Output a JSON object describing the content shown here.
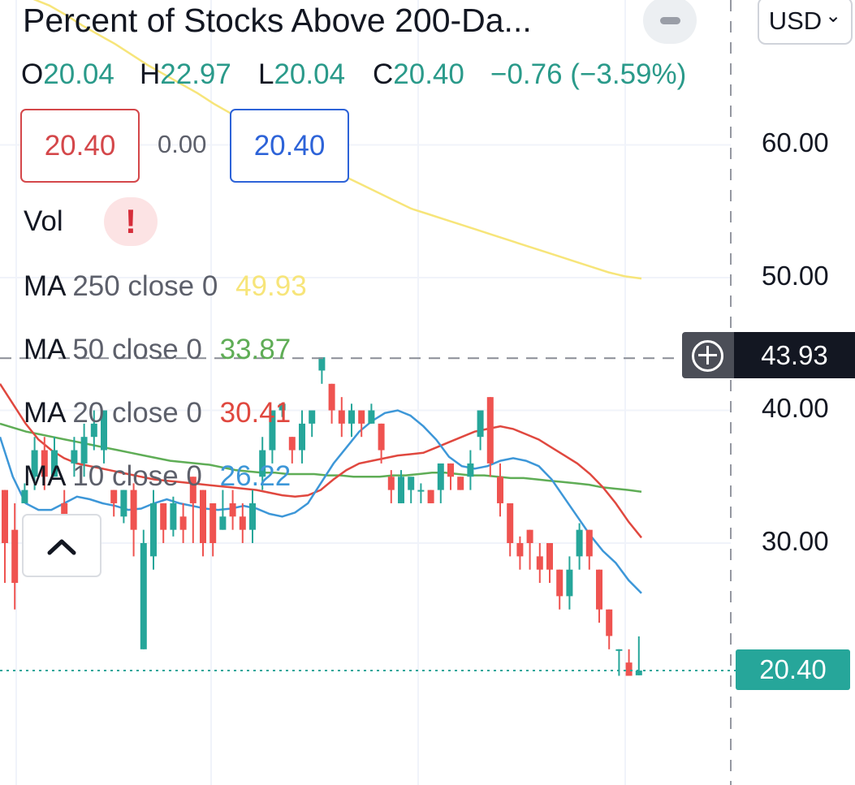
{
  "header": {
    "title": "Percent of Stocks Above 200-Da...",
    "currency": "USD",
    "currency_caret": "⌄"
  },
  "ohlc": {
    "o_label": "O",
    "o": "20.04",
    "h_label": "H",
    "h": "22.97",
    "l_label": "L",
    "l": "20.04",
    "c_label": "C",
    "c": "20.40",
    "change": "−0.76 (−3.59%)"
  },
  "quote": {
    "bid": "20.40",
    "spread": "0.00",
    "ask": "20.40"
  },
  "volume": {
    "label": "Vol",
    "warning_icon": "!"
  },
  "moving_averages": [
    {
      "name": "MA",
      "params": "250 close 0",
      "value": "49.93",
      "color": "#f7e57a"
    },
    {
      "name": "MA",
      "params": "50 close 0",
      "value": "33.87",
      "color": "#5fad56"
    },
    {
      "name": "MA",
      "params": "20 close 0",
      "value": "30.41",
      "color": "#e0483f"
    },
    {
      "name": "MA",
      "params": "10 close 0",
      "value": "26.22",
      "color": "#3d97d8"
    }
  ],
  "crosshair_price": "43.93",
  "last_price_label": "20.40",
  "colors": {
    "up": "#26a69a",
    "down": "#ef5350",
    "grid": "#f0f3fa",
    "axis_dash": "#9598a1"
  },
  "chart_data": {
    "type": "line",
    "title": "Percent of Stocks Above 200-Da...",
    "y_axis": {
      "ticks": [
        60.0,
        50.0,
        40.0,
        30.0
      ],
      "tick_labels": [
        "60.00",
        "50.00",
        "40.00",
        "30.00"
      ],
      "range": [
        12,
        70
      ]
    },
    "last_price": 20.4,
    "crosshair_value": 43.93,
    "candles": [
      [
        34,
        30,
        27,
        34
      ],
      [
        31,
        27,
        25,
        33
      ],
      [
        33,
        34,
        33,
        34.5
      ],
      [
        35,
        37,
        34,
        38
      ],
      [
        37,
        35,
        34,
        38
      ],
      [
        35,
        37,
        35,
        38
      ],
      [
        33,
        31,
        29,
        34
      ],
      [
        36,
        37,
        35,
        38
      ],
      [
        36,
        38,
        35,
        39
      ],
      [
        38,
        39,
        37,
        40
      ],
      [
        37,
        40,
        36,
        40
      ],
      [
        34,
        33,
        32,
        34
      ],
      [
        32,
        34,
        31.5,
        34
      ],
      [
        34,
        31,
        29,
        34.5
      ],
      [
        22,
        30,
        22,
        31
      ],
      [
        29,
        33,
        28,
        34
      ],
      [
        33,
        31,
        30,
        33
      ],
      [
        31,
        33,
        30.5,
        33.5
      ],
      [
        32,
        31,
        30,
        33
      ],
      [
        35,
        33,
        30,
        35
      ],
      [
        34,
        30,
        29,
        34
      ],
      [
        33,
        30,
        29,
        33
      ],
      [
        31,
        32,
        31,
        34
      ],
      [
        33,
        32,
        31,
        34
      ],
      [
        32,
        31,
        30,
        33
      ],
      [
        31,
        33,
        30,
        34
      ],
      [
        35,
        37,
        34,
        38
      ],
      [
        37,
        40,
        36,
        40
      ],
      [
        40,
        40.5,
        39.5,
        40.5
      ],
      [
        38,
        37,
        36,
        38
      ],
      [
        37,
        39,
        36,
        40
      ],
      [
        39,
        40,
        38,
        40
      ],
      [
        43,
        44,
        42,
        44
      ],
      [
        42,
        40,
        39,
        42
      ],
      [
        40,
        39,
        38,
        41
      ],
      [
        39,
        40,
        38,
        40.5
      ],
      [
        40,
        39,
        38,
        40
      ],
      [
        39,
        40,
        39,
        40.5
      ],
      [
        39,
        37,
        36,
        39
      ],
      [
        35,
        34,
        33,
        35.5
      ],
      [
        33,
        35,
        33,
        35.5
      ],
      [
        34,
        35,
        33,
        34.5
      ],
      [
        34,
        34,
        33,
        34.5
      ],
      [
        34,
        33,
        33,
        34
      ],
      [
        34,
        36,
        33,
        35.5
      ],
      [
        36,
        35,
        34,
        36
      ],
      [
        35,
        34,
        34,
        35
      ],
      [
        35,
        36,
        34,
        37
      ],
      [
        38,
        40,
        37,
        40
      ],
      [
        41,
        36,
        35,
        41
      ],
      [
        35,
        33,
        32,
        36
      ],
      [
        33,
        30,
        29,
        33
      ],
      [
        30,
        29,
        28,
        30.5
      ],
      [
        31,
        30,
        28,
        31
      ],
      [
        29,
        28,
        27,
        30
      ],
      [
        30,
        28,
        27,
        30
      ],
      [
        28,
        26,
        25,
        28
      ],
      [
        26,
        28,
        25,
        29
      ],
      [
        29,
        31,
        28,
        31.5
      ],
      [
        31,
        29,
        28,
        31
      ],
      [
        28,
        25,
        24,
        28
      ],
      [
        25,
        23,
        22,
        25
      ],
      [
        22,
        22,
        20,
        22
      ],
      [
        21,
        20,
        20,
        22
      ],
      [
        20.04,
        20.4,
        20.04,
        22.97
      ]
    ],
    "series": [
      {
        "name": "MA 250 close 0",
        "values": [
          73,
          72,
          71,
          70.5,
          69.8,
          69,
          68.3,
          67.6,
          66.8,
          66,
          65.3,
          64.6,
          63.9,
          63.1,
          62.4,
          61.7,
          61,
          60.3,
          59.6,
          58.9,
          58.2,
          57.6,
          57,
          56.4,
          55.8,
          55.2,
          54.8,
          54.4,
          54,
          53.6,
          53.2,
          52.8,
          52.4,
          52,
          51.6,
          51.2,
          50.8,
          50.4,
          50.1,
          49.93
        ]
      },
      {
        "name": "MA 50 close 0",
        "values": [
          39,
          38.7,
          38.4,
          38.2,
          38,
          37.8,
          37.6,
          37.4,
          37.2,
          37,
          36.8,
          36.6,
          36.4,
          36.2,
          36.1,
          36,
          35.9,
          35.7,
          35.5,
          35.4,
          35.3,
          35.3,
          35.2,
          35.2,
          35.2,
          35.1,
          35.1,
          35,
          35,
          35,
          35.1,
          35.1,
          35.2,
          35.3,
          35.3,
          35.2,
          35.1,
          35.1,
          35,
          34.9,
          34.9,
          34.8,
          34.7,
          34.6,
          34.5,
          34.4,
          34.2,
          34.1,
          34,
          33.87
        ]
      },
      {
        "name": "MA 20 close 0",
        "values": [
          42,
          40.5,
          39,
          37.8,
          37,
          36.4,
          36,
          35.8,
          35.6,
          35.4,
          35.2,
          35,
          34.8,
          34.7,
          34.6,
          34.5,
          34.4,
          34.3,
          34.2,
          34.1,
          34,
          33.8,
          33.6,
          33.5,
          33.6,
          34,
          34.8,
          35.5,
          36,
          36.2,
          36.4,
          36.6,
          36.7,
          36.8,
          37.2,
          37.6,
          38,
          38.4,
          38.6,
          38.8,
          38.6,
          38.2,
          37.8,
          37.2,
          36.6,
          36,
          35.2,
          34.2,
          33,
          31.6,
          30.41
        ]
      },
      {
        "name": "MA 10 close 0",
        "values": [
          38,
          35,
          33,
          32.5,
          32.5,
          33,
          33.5,
          33.3,
          33,
          32.8,
          32.5,
          32.6,
          33,
          33.3,
          33,
          32.8,
          32.6,
          32.5,
          32.6,
          32.8,
          32.6,
          32.2,
          32,
          32.3,
          33,
          34.5,
          36,
          37.2,
          38.4,
          39.2,
          39.8,
          40,
          39.6,
          38.8,
          37.8,
          36.5,
          35.8,
          35.6,
          35.8,
          36.2,
          36.4,
          36.2,
          35.8,
          34.8,
          33.4,
          32,
          30.6,
          29.4,
          28.5,
          27.2,
          26.22
        ]
      }
    ]
  }
}
